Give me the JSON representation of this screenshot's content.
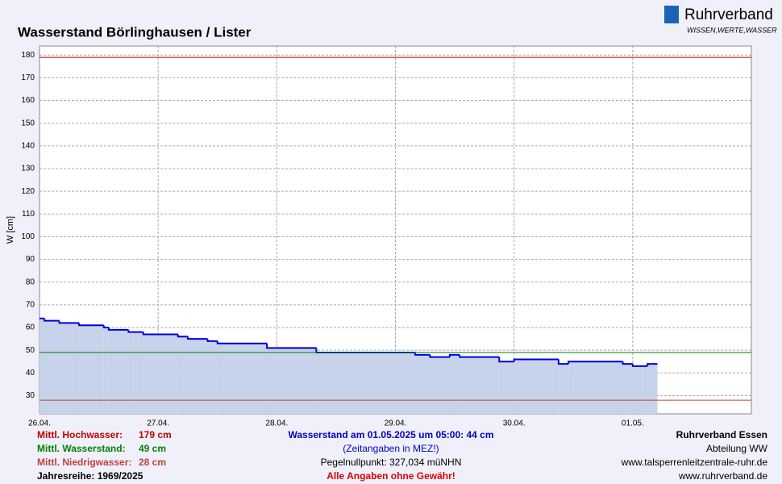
{
  "logo": {
    "name": "Ruhrverband",
    "slogan": "WISSEN,WERTE,WASSER"
  },
  "chart_data": {
    "type": "step-area",
    "title": "Wasserstand Börlinghausen / Lister",
    "y_label": "W [cm]",
    "x": [
      0,
      1,
      4,
      8,
      13,
      14,
      18,
      21,
      28,
      30,
      34,
      36,
      46,
      56,
      76,
      79,
      83,
      85,
      93,
      96,
      105,
      107,
      118,
      120,
      123,
      125
    ],
    "series": [
      {
        "color": "#0000e0",
        "values": [
          64,
          63,
          62,
          61,
          60,
          59,
          58,
          57,
          56,
          55,
          54,
          53,
          51,
          49,
          48,
          47,
          48,
          47,
          45,
          46,
          44,
          45,
          44,
          43,
          44,
          44
        ]
      }
    ],
    "xlim": [
      0,
      144
    ],
    "xticks": [
      {
        "value": 0,
        "label": "26.04."
      },
      {
        "value": 24,
        "label": "27.04."
      },
      {
        "value": 48,
        "label": "28.04."
      },
      {
        "value": 72,
        "label": "29.04."
      },
      {
        "value": 96,
        "label": "30.04."
      },
      {
        "value": 120,
        "label": "01.05."
      }
    ],
    "ylim": [
      22,
      184
    ],
    "yticks": [
      30,
      40,
      50,
      60,
      70,
      80,
      90,
      100,
      110,
      120,
      130,
      140,
      150,
      160,
      170,
      180
    ],
    "grid": true,
    "reference_lines": [
      {
        "label": "Mittl. Hochwasser:",
        "value": 179,
        "value_label": "179 cm",
        "color": "#c00000"
      },
      {
        "label": "Mittl. Wasserstand:",
        "value": 49,
        "value_label": "49 cm",
        "color": "#008000"
      },
      {
        "label": "Mittl. Niedrigwasser:",
        "value": 28,
        "value_label": "28 cm",
        "color": "#c04040"
      }
    ]
  },
  "footer": {
    "series_years": "Jahresreihe: 1969/2025",
    "center": [
      "Wasserstand am 01.05.2025 um 05:00: 44 cm",
      "(Zeitangaben in MEZ!)",
      "Pegelnullpunkt:  327,034 müNHN",
      "Alle Angaben ohne Gewähr!"
    ],
    "right": [
      "Ruhrverband Essen",
      "Abteilung WW",
      "www.talsperrenleitzentrale-ruhr.de",
      "www.ruhrverband.de"
    ]
  }
}
